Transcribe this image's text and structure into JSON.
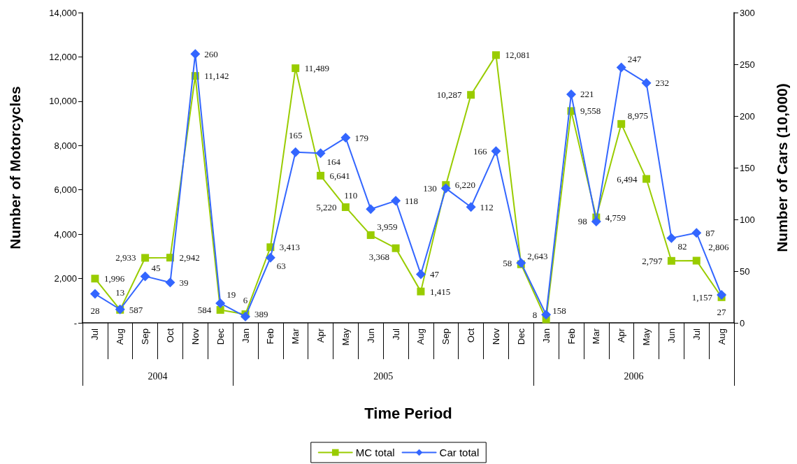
{
  "chart_data": {
    "type": "line",
    "xlabel": "Time Period",
    "ylabel": "Number of Motorcycles",
    "y2label": "Number of Cars (10,000)",
    "categories": [
      "Jul",
      "Aug",
      "Sep",
      "Oct",
      "Nov",
      "Dec",
      "Jan",
      "Feb",
      "Mar",
      "Apr",
      "May",
      "Jun",
      "Jul",
      "Aug",
      "Sep",
      "Oct",
      "Nov",
      "Dec",
      "Jan",
      "Feb",
      "Mar",
      "Apr",
      "May",
      "Jun",
      "Jul",
      "Aug"
    ],
    "annotations": [
      "2004",
      "2005",
      "2006"
    ],
    "series": [
      {
        "name": "MC total",
        "color": "#99cc00",
        "marker": "square",
        "values": [
          1996,
          587,
          2933,
          2942,
          11142,
          584,
          389,
          3413,
          11489,
          6641,
          5220,
          3959,
          3368,
          1415,
          6220,
          10287,
          12081,
          2643,
          158,
          9558,
          4759,
          8975,
          6494,
          2797,
          2806,
          1157
        ],
        "value_labels": [
          "1,996",
          "587",
          "2,933",
          "2,942",
          "11,142",
          "584",
          "389",
          "3,413",
          "11,489",
          "6,641",
          "5,220",
          "3,959",
          "3,368",
          "1,415",
          "6,220",
          "10,287",
          "12,081",
          "2,643",
          "158",
          "9,558",
          "4,759",
          "8,975",
          "6,494",
          "2,797",
          "2,806",
          "1,157"
        ]
      },
      {
        "name": "Car total",
        "color": "#3366ff",
        "marker": "diamond",
        "axis": "y2",
        "values": [
          28,
          13,
          45,
          39,
          260,
          19,
          6,
          63,
          165,
          164,
          179,
          110,
          118,
          47,
          130,
          112,
          166,
          58,
          8,
          221,
          98,
          247,
          232,
          82,
          87,
          27
        ],
        "value_labels": [
          "28",
          "13",
          "45",
          "39",
          "260",
          "19",
          "6",
          "63",
          "165",
          "164",
          "179",
          "110",
          "118",
          "47",
          "130",
          "112",
          "166",
          "58",
          "8",
          "221",
          "98",
          "247",
          "232",
          "82",
          "87",
          "27"
        ]
      }
    ],
    "ylim": [
      0,
      14000
    ],
    "yticks": [
      {
        "value": 0,
        "label": "-"
      },
      {
        "value": 2000,
        "label": "2,000"
      },
      {
        "value": 4000,
        "label": "4,000"
      },
      {
        "value": 6000,
        "label": "6,000"
      },
      {
        "value": 8000,
        "label": "8,000"
      },
      {
        "value": 10000,
        "label": "10,000"
      },
      {
        "value": 12000,
        "label": "12,000"
      },
      {
        "value": 14000,
        "label": "14,000"
      }
    ],
    "y2lim": [
      0,
      300
    ],
    "y2ticks": [
      0,
      50,
      100,
      150,
      200,
      250,
      300
    ],
    "grid": false,
    "legend": "bottom"
  }
}
